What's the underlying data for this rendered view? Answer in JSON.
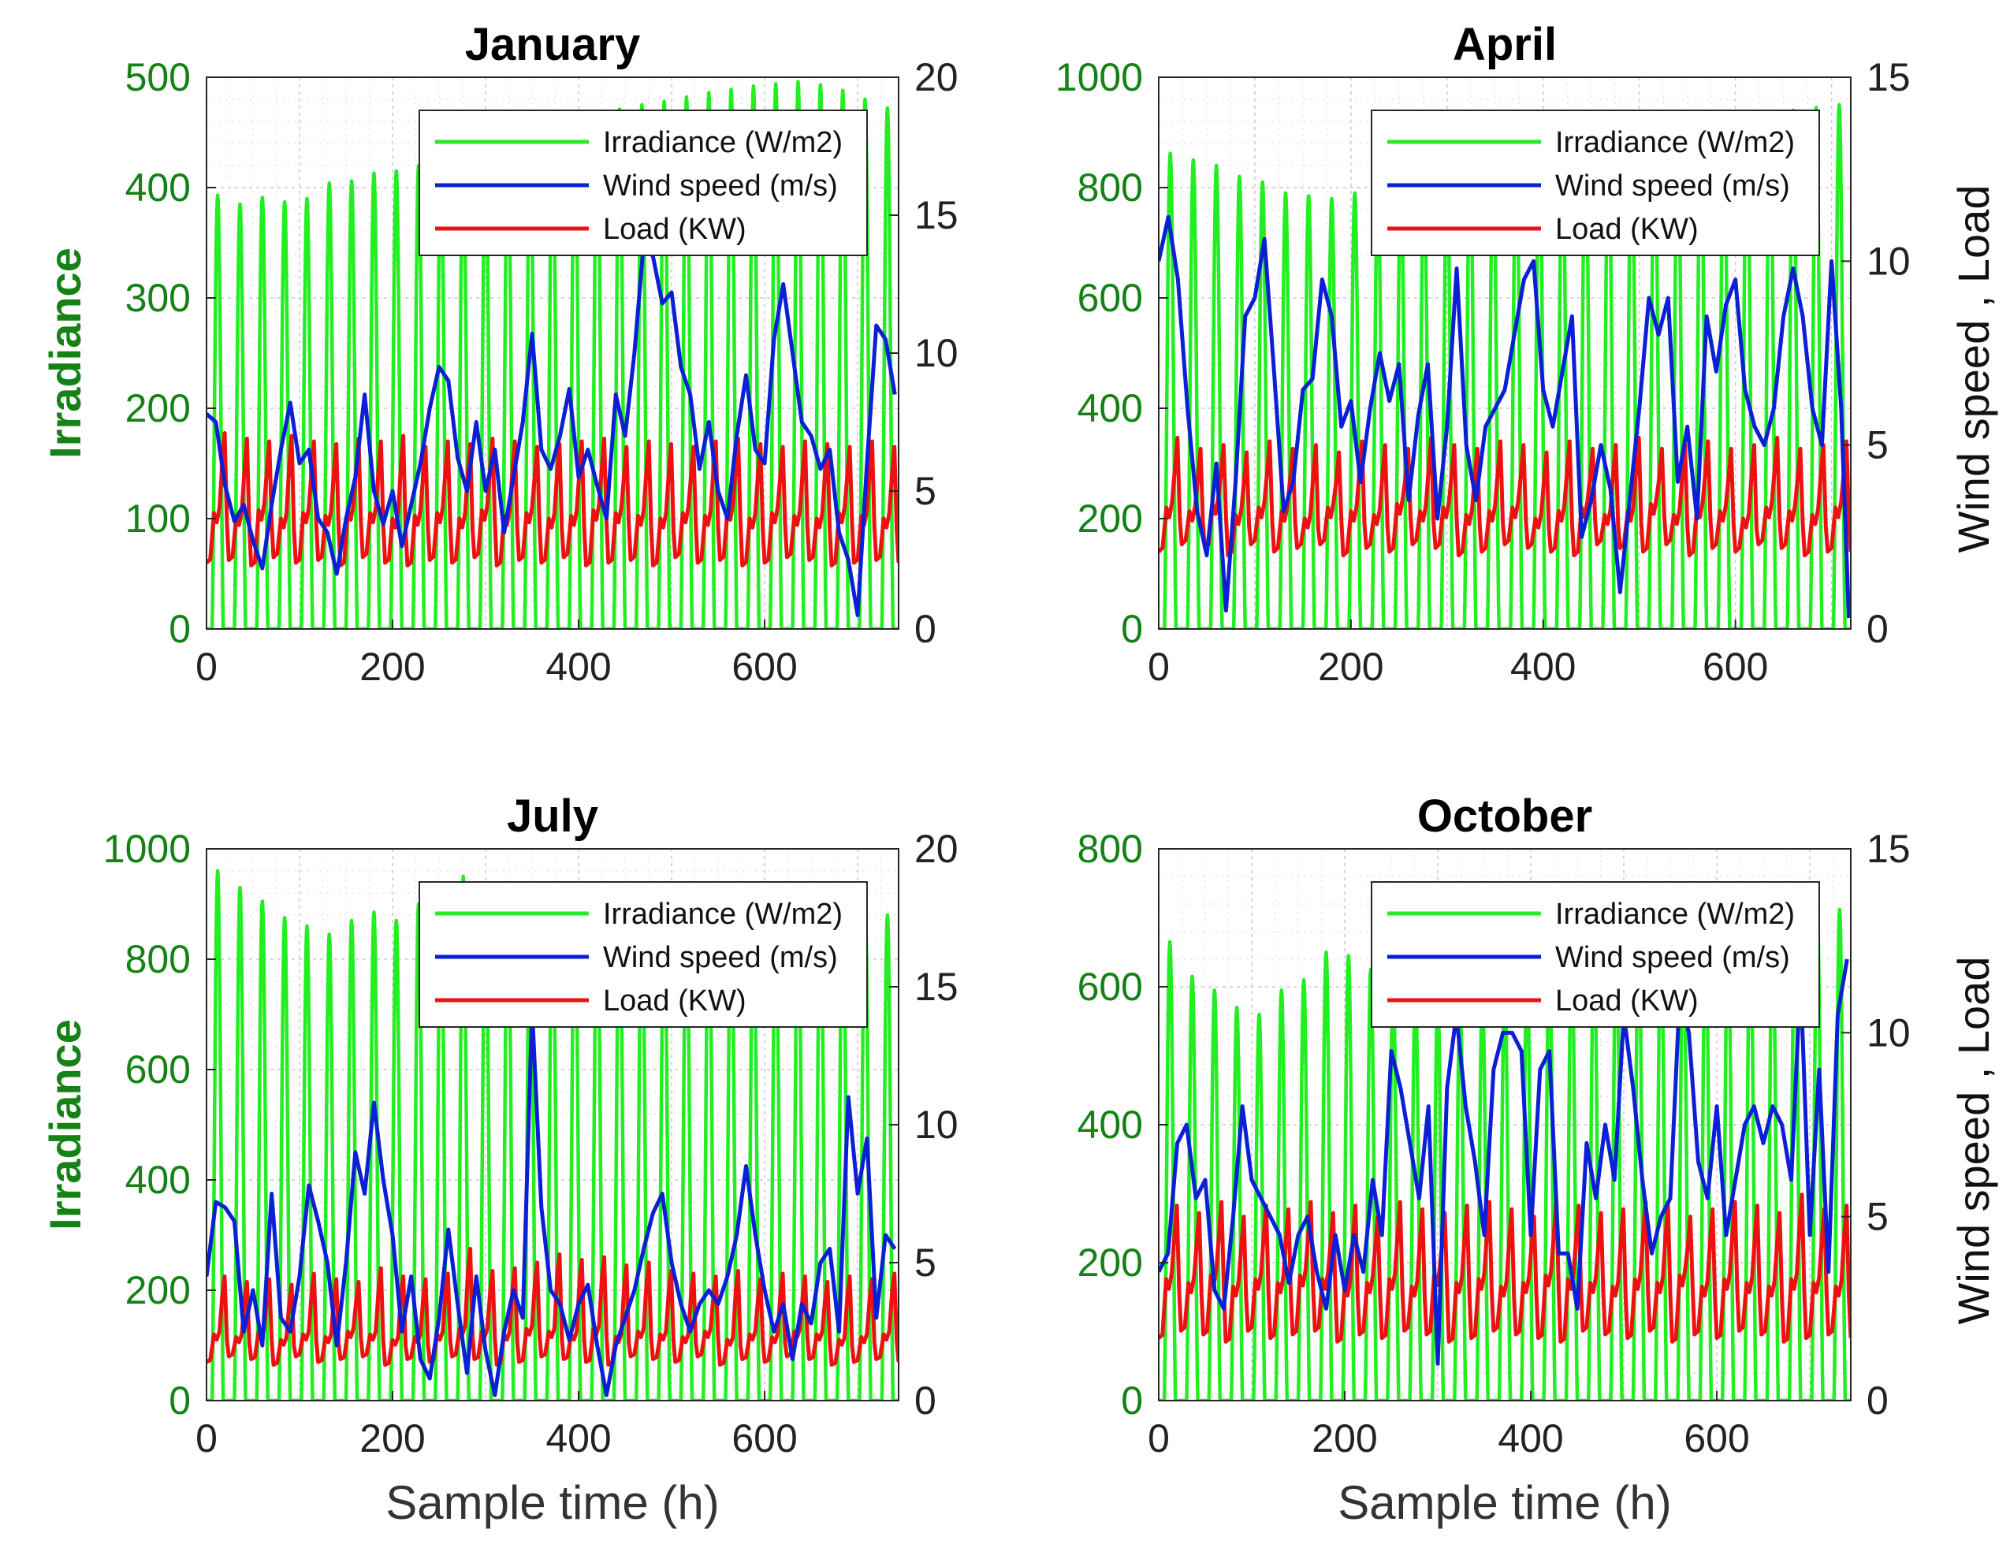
{
  "figure": {
    "xlabel": "Sample time (h)",
    "left_ylabel": "Irradiance",
    "right_ylabel": "Wind speed , Load"
  },
  "legend": {
    "irradiance": "Irradiance (W/m2)",
    "wind": "Wind speed (m/s)",
    "load": "Load (KW)"
  },
  "colors": {
    "irradiance": "#22ee22",
    "wind": "#0a1fd6",
    "load": "#ee1111",
    "left_axis": "#148214"
  },
  "chart_data": [
    {
      "type": "line",
      "title": "January",
      "xlim": [
        0,
        744
      ],
      "xticks": [
        0,
        200,
        400,
        600
      ],
      "xlabel": "",
      "ylabel_left": "Irradiance",
      "ylabel_right": "",
      "ylim_left": [
        0,
        500
      ],
      "yticks_left": [
        0,
        100,
        200,
        300,
        400,
        500
      ],
      "ylim_right": [
        0,
        20
      ],
      "yticks_right": [
        0,
        5,
        10,
        15,
        20
      ],
      "irradiance_daily_peaks": [
        393,
        385,
        391,
        387,
        390,
        404,
        406,
        413,
        415,
        420,
        424,
        430,
        437,
        443,
        449,
        456,
        460,
        465,
        471,
        475,
        478,
        482,
        486,
        489,
        492,
        494,
        496,
        493,
        488,
        480,
        472
      ],
      "wind_x": [
        0,
        10,
        20,
        30,
        40,
        50,
        60,
        70,
        80,
        90,
        100,
        110,
        120,
        130,
        140,
        150,
        160,
        170,
        180,
        190,
        200,
        210,
        220,
        230,
        240,
        250,
        260,
        270,
        280,
        290,
        300,
        310,
        320,
        330,
        340,
        350,
        360,
        370,
        380,
        390,
        400,
        410,
        420,
        430,
        440,
        450,
        460,
        470,
        480,
        490,
        500,
        510,
        520,
        530,
        540,
        550,
        560,
        570,
        580,
        590,
        600,
        610,
        620,
        630,
        640,
        650,
        660,
        670,
        680,
        690,
        700,
        710,
        720,
        730,
        740
      ],
      "wind_values": [
        7.8,
        7.5,
        5.2,
        3.9,
        4.5,
        3.2,
        2.2,
        4.5,
        6.5,
        8.2,
        6.0,
        6.5,
        4.0,
        3.5,
        2.0,
        4.0,
        5.5,
        8.5,
        5.0,
        3.8,
        5.0,
        3.0,
        4.5,
        6.0,
        8.0,
        9.5,
        9.0,
        6.2,
        5.0,
        7.5,
        5.0,
        6.5,
        3.5,
        5.5,
        7.5,
        10.7,
        6.5,
        5.8,
        7.0,
        8.7,
        5.5,
        6.5,
        5.2,
        4.0,
        8.5,
        7.0,
        10.0,
        14.0,
        13.5,
        11.8,
        12.2,
        9.5,
        8.5,
        5.8,
        7.5,
        5.0,
        4.0,
        7.0,
        9.2,
        6.5,
        6.0,
        10.5,
        12.5,
        10.0,
        7.5,
        7.0,
        5.8,
        6.5,
        3.5,
        2.5,
        0.5,
        6.0,
        11.0,
        10.5,
        8.5
      ],
      "load_min": [
        2.4,
        2.5,
        2.3,
        2.6,
        2.4,
        2.5,
        2.3,
        2.6,
        2.4,
        2.3,
        2.5,
        2.4,
        2.6,
        2.3,
        2.5,
        2.4,
        2.6,
        2.3,
        2.4,
        2.5,
        2.3,
        2.6,
        2.4,
        2.5,
        2.3,
        2.4,
        2.6,
        2.5,
        2.3,
        2.4,
        2.5
      ],
      "load_max": [
        7.1,
        6.9,
        6.8,
        7.0,
        6.8,
        6.7,
        6.9,
        6.8,
        7.0,
        6.6,
        6.8,
        6.7,
        6.9,
        6.8,
        6.6,
        6.7,
        6.8,
        6.9,
        6.6,
        6.8,
        6.7,
        6.6,
        6.8,
        6.9,
        6.7,
        6.6,
        6.8,
        6.7,
        6.6,
        6.8,
        6.6
      ],
      "load_mid": [
        4.2,
        4.1,
        4.3,
        4.0,
        4.2,
        4.1,
        4.3,
        4.2,
        4.0,
        4.1,
        4.2,
        4.0,
        4.3,
        4.1,
        4.2,
        4.0,
        4.1,
        4.3,
        4.2,
        4.1,
        4.0,
        4.2,
        4.1,
        4.3,
        4.0,
        4.2,
        4.1,
        4.0,
        4.2,
        4.1,
        4.0
      ]
    },
    {
      "type": "line",
      "title": "April",
      "xlim": [
        0,
        720
      ],
      "xticks": [
        0,
        200,
        400,
        600
      ],
      "xlabel": "",
      "ylabel_left": "",
      "ylabel_right": "Wind speed , Load",
      "ylim_left": [
        0,
        1000
      ],
      "yticks_left": [
        0,
        200,
        400,
        600,
        800,
        1000
      ],
      "ylim_right": [
        0,
        15
      ],
      "yticks_right": [
        0,
        5,
        10,
        15
      ],
      "irradiance_daily_peaks": [
        862,
        850,
        840,
        820,
        810,
        790,
        785,
        780,
        790,
        800,
        812,
        825,
        838,
        850,
        862,
        872,
        880,
        888,
        895,
        900,
        905,
        910,
        915,
        920,
        925,
        930,
        935,
        940,
        945,
        950
      ],
      "wind_x": [
        0,
        10,
        20,
        30,
        40,
        50,
        60,
        70,
        80,
        90,
        100,
        110,
        120,
        130,
        140,
        150,
        160,
        170,
        180,
        190,
        200,
        210,
        220,
        230,
        240,
        250,
        260,
        270,
        280,
        290,
        300,
        310,
        320,
        330,
        340,
        350,
        360,
        370,
        380,
        390,
        400,
        410,
        420,
        430,
        440,
        450,
        460,
        470,
        480,
        490,
        500,
        510,
        520,
        530,
        540,
        550,
        560,
        570,
        580,
        590,
        600,
        610,
        620,
        630,
        640,
        650,
        660,
        670,
        680,
        690,
        700,
        710,
        718
      ],
      "wind_values": [
        10.0,
        11.2,
        9.5,
        6.0,
        3.2,
        2.0,
        4.5,
        0.5,
        4.0,
        8.5,
        9.0,
        10.6,
        7.0,
        3.2,
        4.0,
        6.5,
        6.8,
        9.5,
        8.5,
        5.5,
        6.2,
        4.0,
        6.0,
        7.5,
        6.2,
        7.2,
        3.5,
        5.8,
        7.2,
        3.0,
        5.5,
        9.8,
        5.0,
        3.5,
        5.5,
        6.0,
        6.5,
        8.0,
        9.5,
        10.0,
        6.5,
        5.5,
        7.0,
        8.5,
        2.5,
        3.5,
        5.0,
        3.8,
        1.0,
        3.5,
        6.0,
        9.0,
        8.0,
        9.0,
        4.0,
        5.5,
        3.0,
        8.5,
        7.0,
        8.8,
        9.5,
        6.5,
        5.5,
        5.0,
        6.0,
        8.5,
        9.8,
        8.5,
        6.0,
        5.0,
        10.0,
        6.0,
        0.3
      ],
      "load_min": [
        2.1,
        2.3,
        2.2,
        2.0,
        2.3,
        2.1,
        2.2,
        2.3,
        2.0,
        2.2,
        2.1,
        2.3,
        2.2,
        2.0,
        2.1,
        2.3,
        2.2,
        2.1,
        2.0,
        2.3,
        2.2,
        2.1,
        2.3,
        2.0,
        2.2,
        2.1,
        2.3,
        2.2,
        2.0,
        2.1
      ],
      "load_max": [
        5.2,
        4.9,
        5.0,
        4.8,
        5.1,
        4.9,
        5.0,
        4.8,
        5.1,
        5.0,
        4.9,
        5.2,
        5.0,
        4.9,
        5.1,
        5.0,
        4.8,
        5.1,
        4.9,
        5.0,
        5.2,
        4.9,
        5.0,
        5.1,
        4.9,
        5.0,
        5.2,
        4.9,
        5.0,
        5.1
      ],
      "load_mid": [
        3.3,
        3.2,
        3.4,
        3.1,
        3.3,
        3.2,
        3.0,
        3.3,
        3.2,
        3.1,
        3.4,
        3.2,
        3.3,
        3.1,
        3.2,
        3.3,
        3.0,
        3.2,
        3.3,
        3.1,
        3.2,
        3.4,
        3.1,
        3.3,
        3.2,
        3.0,
        3.3,
        3.2,
        3.1,
        3.3
      ]
    },
    {
      "type": "line",
      "title": "July",
      "xlim": [
        0,
        744
      ],
      "xticks": [
        0,
        200,
        400,
        600
      ],
      "xlabel": "Sample time (h)",
      "ylabel_left": "Irradiance",
      "ylabel_right": "",
      "ylim_left": [
        0,
        1000
      ],
      "yticks_left": [
        0,
        200,
        400,
        600,
        800,
        1000
      ],
      "ylim_right": [
        0,
        20
      ],
      "yticks_right": [
        0,
        5,
        10,
        15,
        20
      ],
      "irradiance_daily_peaks": [
        960,
        930,
        905,
        875,
        860,
        845,
        870,
        885,
        870,
        900,
        930,
        950,
        925,
        930,
        920,
        915,
        920,
        910,
        905,
        910,
        900,
        895,
        905,
        900,
        895,
        890,
        900,
        910,
        920,
        900,
        880
      ],
      "wind_x": [
        0,
        10,
        20,
        30,
        40,
        50,
        60,
        70,
        80,
        90,
        100,
        110,
        120,
        130,
        140,
        150,
        160,
        170,
        180,
        190,
        200,
        210,
        220,
        230,
        240,
        250,
        260,
        270,
        280,
        290,
        300,
        310,
        320,
        330,
        340,
        350,
        360,
        370,
        380,
        390,
        400,
        410,
        420,
        430,
        440,
        450,
        460,
        470,
        480,
        490,
        500,
        510,
        520,
        530,
        540,
        550,
        560,
        570,
        580,
        590,
        600,
        610,
        620,
        630,
        640,
        650,
        660,
        670,
        680,
        690,
        700,
        710,
        720,
        730,
        740
      ],
      "wind_values": [
        4.5,
        7.2,
        7.0,
        6.5,
        2.5,
        4.0,
        2.0,
        7.5,
        3.0,
        2.5,
        4.5,
        7.8,
        6.5,
        5.0,
        2.0,
        5.0,
        9.0,
        7.5,
        10.8,
        8.0,
        6.0,
        2.5,
        4.5,
        1.5,
        0.8,
        3.0,
        6.2,
        3.5,
        1.0,
        4.5,
        1.8,
        0.2,
        2.5,
        4.0,
        3.0,
        14.2,
        7.0,
        4.0,
        3.5,
        2.2,
        3.5,
        4.2,
        2.0,
        0.2,
        2.0,
        3.0,
        4.0,
        5.5,
        6.8,
        7.5,
        5.0,
        3.5,
        2.5,
        3.5,
        4.0,
        3.5,
        4.5,
        6.0,
        8.5,
        6.0,
        4.0,
        2.5,
        3.5,
        1.5,
        3.5,
        2.8,
        5.0,
        5.5,
        2.5,
        11.0,
        7.5,
        9.5,
        3.0,
        6.0,
        5.5
      ],
      "load_min": [
        1.4,
        1.6,
        1.5,
        1.3,
        1.6,
        1.4,
        1.5,
        1.6,
        1.3,
        1.5,
        1.4,
        1.6,
        1.5,
        1.3,
        1.4,
        1.6,
        1.5,
        1.4,
        1.3,
        1.6,
        1.5,
        1.4,
        1.6,
        1.3,
        1.5,
        1.4,
        1.6,
        1.5,
        1.3,
        1.4,
        1.5
      ],
      "load_max": [
        4.5,
        4.3,
        4.4,
        4.2,
        4.6,
        4.4,
        4.3,
        4.8,
        4.5,
        4.4,
        4.6,
        5.5,
        4.7,
        4.8,
        5.0,
        5.3,
        5.1,
        5.2,
        4.9,
        5.0,
        4.7,
        4.6,
        4.5,
        4.7,
        4.4,
        4.6,
        4.5,
        4.3,
        4.5,
        4.4,
        4.6
      ],
      "load_mid": [
        2.4,
        2.3,
        2.5,
        2.2,
        2.4,
        2.3,
        2.5,
        2.4,
        2.2,
        2.3,
        2.4,
        2.6,
        2.5,
        2.4,
        2.6,
        2.5,
        2.4,
        2.6,
        2.3,
        2.5,
        2.4,
        2.3,
        2.5,
        2.2,
        2.4,
        2.3,
        2.5,
        2.4,
        2.2,
        2.3,
        2.4
      ]
    },
    {
      "type": "line",
      "title": "October",
      "xlim": [
        0,
        744
      ],
      "xticks": [
        0,
        200,
        400,
        600
      ],
      "xlabel": "Sample time (h)",
      "ylabel_left": "",
      "ylabel_right": "Wind speed , Load",
      "ylim_left": [
        0,
        800
      ],
      "yticks_left": [
        0,
        200,
        400,
        600,
        800
      ],
      "ylim_right": [
        0,
        15
      ],
      "yticks_right": [
        0,
        5,
        10,
        15
      ],
      "irradiance_daily_peaks": [
        665,
        615,
        595,
        570,
        560,
        595,
        610,
        650,
        645,
        625,
        605,
        595,
        580,
        575,
        590,
        605,
        625,
        640,
        655,
        665,
        672,
        675,
        680,
        676,
        680,
        690,
        695,
        700,
        705,
        710,
        712
      ],
      "wind_x": [
        0,
        10,
        20,
        30,
        40,
        50,
        60,
        70,
        80,
        90,
        100,
        110,
        120,
        130,
        140,
        150,
        160,
        170,
        180,
        190,
        200,
        210,
        220,
        230,
        240,
        250,
        260,
        270,
        280,
        290,
        300,
        310,
        320,
        330,
        340,
        350,
        360,
        370,
        380,
        390,
        400,
        410,
        420,
        430,
        440,
        450,
        460,
        470,
        480,
        490,
        500,
        510,
        520,
        530,
        540,
        550,
        560,
        570,
        580,
        590,
        600,
        610,
        620,
        630,
        640,
        650,
        660,
        670,
        680,
        690,
        700,
        710,
        720,
        730,
        740
      ],
      "wind_values": [
        3.5,
        4.0,
        7.0,
        7.5,
        5.5,
        6.0,
        3.0,
        2.5,
        5.0,
        8.0,
        6.0,
        5.5,
        5.0,
        4.5,
        3.2,
        4.5,
        5.0,
        3.5,
        2.5,
        4.5,
        3.0,
        4.5,
        3.5,
        6.0,
        4.5,
        9.5,
        8.5,
        7.0,
        5.5,
        8.0,
        1.0,
        8.5,
        10.5,
        8.0,
        6.5,
        4.5,
        9.0,
        10.0,
        10.0,
        9.5,
        4.5,
        9.0,
        9.5,
        4.0,
        4.0,
        2.5,
        7.0,
        5.5,
        7.5,
        6.0,
        10.5,
        8.5,
        6.0,
        4.0,
        5.0,
        5.5,
        11.0,
        10.0,
        6.5,
        5.5,
        8.0,
        4.5,
        6.0,
        7.5,
        8.0,
        7.0,
        8.0,
        7.5,
        6.0,
        11.5,
        4.5,
        9.0,
        3.5,
        10.5,
        12.0
      ],
      "load_min": [
        1.7,
        1.9,
        1.8,
        1.6,
        1.9,
        1.7,
        1.8,
        1.9,
        1.6,
        1.8,
        1.7,
        1.9,
        1.8,
        1.6,
        1.7,
        1.9,
        1.8,
        1.7,
        1.6,
        1.9,
        1.8,
        1.7,
        1.9,
        1.6,
        1.8,
        1.7,
        1.9,
        1.8,
        1.6,
        1.7,
        1.8
      ],
      "load_max": [
        5.3,
        5.1,
        5.4,
        5.0,
        5.3,
        5.2,
        5.4,
        5.1,
        5.3,
        5.0,
        5.4,
        5.2,
        5.1,
        5.3,
        5.4,
        5.2,
        5.0,
        5.4,
        5.3,
        5.1,
        5.2,
        5.4,
        5.3,
        5.0,
        5.2,
        5.4,
        5.3,
        5.1,
        5.6,
        5.2,
        5.3
      ],
      "load_mid": [
        3.3,
        3.2,
        3.4,
        3.1,
        3.3,
        3.2,
        3.4,
        3.3,
        3.1,
        3.2,
        3.3,
        3.1,
        3.4,
        3.2,
        3.3,
        3.1,
        3.2,
        3.4,
        3.3,
        3.2,
        3.1,
        3.3,
        3.2,
        3.4,
        3.1,
        3.3,
        3.2,
        3.1,
        3.3,
        3.2,
        3.1
      ]
    }
  ]
}
